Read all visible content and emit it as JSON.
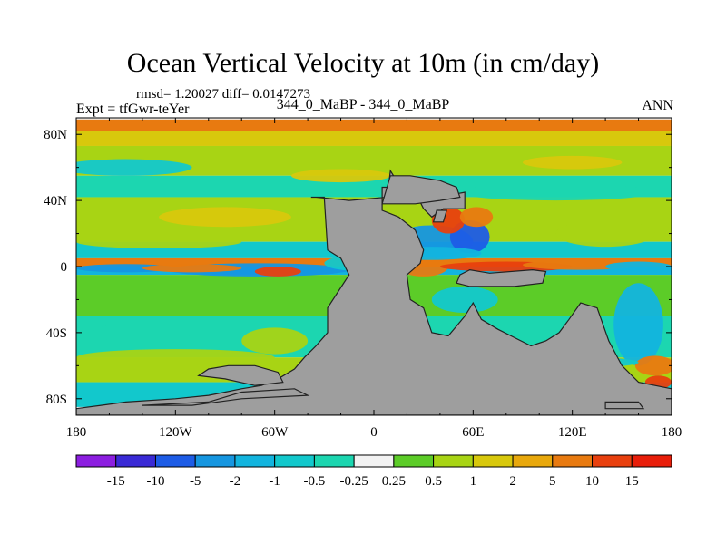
{
  "title": "Ocean Vertical Velocity at 10m (in cm/day)",
  "stats": "rmsd= 1.20027 diff= 0.0147273",
  "expt_label": "Expt = tfGwr-teYer",
  "comparison": "344_0_MaBP - 344_0_MaBP",
  "period": "ANN",
  "chart_data": {
    "type": "heatmap",
    "title": "Ocean Vertical Velocity at 10m (in cm/day)",
    "x_tick_labels": [
      "180",
      "120W",
      "60W",
      "0",
      "60E",
      "120E",
      "180"
    ],
    "y_tick_labels": [
      "80N",
      "40N",
      "0",
      "40S",
      "80S"
    ],
    "xlim": [
      -180,
      180
    ],
    "ylim": [
      -90,
      90
    ],
    "x_ticks": [
      -180,
      -120,
      -60,
      0,
      60,
      120,
      180
    ],
    "y_ticks": [
      80,
      40,
      0,
      -40,
      -80
    ],
    "land_color": "#9e9e9e",
    "colorbar": {
      "labels": [
        "-15",
        "-10",
        "-5",
        "-2",
        "-1",
        "-0.5",
        "-0.25",
        "0.25",
        "0.5",
        "1",
        "2",
        "5",
        "10",
        "15"
      ],
      "colors": [
        "#8c1ee0",
        "#3a2ad6",
        "#1d5ce6",
        "#1696e0",
        "#12b4de",
        "#12c8cc",
        "#1cd6b0",
        "#f2f2f2",
        "#5ccc28",
        "#a8d414",
        "#d8c80c",
        "#e8a80c",
        "#e87a10",
        "#e8400e",
        "#e81e0a"
      ]
    },
    "bands": [
      {
        "lat_min": 82,
        "lat_max": 89,
        "value": 5
      },
      {
        "lat_min": 73,
        "lat_max": 82,
        "value": 1
      },
      {
        "lat_min": 55,
        "lat_max": 73,
        "value": 0.5
      },
      {
        "lat_min": 42,
        "lat_max": 55,
        "value": -0.5
      },
      {
        "lat_min": 35,
        "lat_max": 42,
        "value": 0.5
      },
      {
        "lat_min": 15,
        "lat_max": 35,
        "value": 0.5
      },
      {
        "lat_min": 5,
        "lat_max": 15,
        "value": -1
      },
      {
        "lat_min": 0,
        "lat_max": 5,
        "value": 5
      },
      {
        "lat_min": -5,
        "lat_max": 0,
        "value": -2
      },
      {
        "lat_min": -30,
        "lat_max": -5,
        "value": 0.25
      },
      {
        "lat_min": -55,
        "lat_max": -30,
        "value": -0.5
      },
      {
        "lat_min": -70,
        "lat_max": -55,
        "value": 0.5
      },
      {
        "lat_min": -85,
        "lat_max": -70,
        "value": -1
      }
    ],
    "land_masses": [
      {
        "name": "Americas",
        "outline": [
          [
            -38,
            42
          ],
          [
            -30,
            42
          ],
          [
            -28,
            10
          ],
          [
            -20,
            5
          ],
          [
            -15,
            -5
          ],
          [
            -28,
            -25
          ],
          [
            -28,
            -40
          ],
          [
            -35,
            -48
          ],
          [
            -42,
            -55
          ],
          [
            -48,
            -62
          ],
          [
            -58,
            -68
          ],
          [
            -68,
            -72
          ],
          [
            -80,
            -74
          ],
          [
            -90,
            -76
          ],
          [
            -100,
            -78
          ],
          [
            -120,
            -80
          ],
          [
            -150,
            -82
          ],
          [
            -165,
            -84
          ],
          [
            -180,
            -86
          ],
          [
            -180,
            -90
          ],
          [
            180,
            -90
          ],
          [
            180,
            -74
          ],
          [
            170,
            -72
          ],
          [
            160,
            -70
          ],
          [
            150,
            -60
          ],
          [
            142,
            -45
          ],
          [
            135,
            -25
          ],
          [
            125,
            -22
          ],
          [
            118,
            -32
          ],
          [
            112,
            -40
          ],
          [
            104,
            -45
          ],
          [
            95,
            -48
          ],
          [
            85,
            -43
          ],
          [
            75,
            -38
          ],
          [
            65,
            -32
          ],
          [
            60,
            -22
          ],
          [
            55,
            -30
          ],
          [
            45,
            -42
          ],
          [
            35,
            -40
          ],
          [
            30,
            -25
          ],
          [
            22,
            -20
          ],
          [
            20,
            -5
          ],
          [
            28,
            2
          ],
          [
            30,
            10
          ],
          [
            25,
            22
          ],
          [
            15,
            30
          ],
          [
            5,
            34
          ],
          [
            5,
            48
          ],
          [
            20,
            48
          ],
          [
            40,
            46
          ],
          [
            50,
            44
          ],
          [
            55,
            45
          ],
          [
            55,
            35
          ],
          [
            42,
            35
          ],
          [
            35,
            30
          ],
          [
            30,
            35
          ],
          [
            25,
            45
          ],
          [
            15,
            50
          ],
          [
            10,
            58
          ],
          [
            8,
            42
          ],
          [
            -15,
            40
          ],
          [
            -35,
            42
          ]
        ]
      },
      {
        "name": "Central Asia",
        "outline": [
          [
            5,
            38
          ],
          [
            10,
            55
          ],
          [
            22,
            55
          ],
          [
            40,
            52
          ],
          [
            50,
            48
          ],
          [
            52,
            42
          ],
          [
            40,
            40
          ],
          [
            25,
            38
          ],
          [
            15,
            38
          ]
        ]
      },
      {
        "name": "Persian Gulf",
        "outline": [
          [
            36,
            27
          ],
          [
            42,
            27
          ],
          [
            44,
            34
          ],
          [
            38,
            34
          ]
        ]
      },
      {
        "name": "Australia",
        "outline": [
          [
            50,
            -10
          ],
          [
            58,
            -12
          ],
          [
            85,
            -12
          ],
          [
            102,
            -10
          ],
          [
            104,
            -3
          ],
          [
            96,
            -2
          ],
          [
            70,
            -4
          ],
          [
            58,
            -2
          ],
          [
            52,
            -5
          ]
        ]
      },
      {
        "name": "Southern continent",
        "outline": [
          [
            -100,
            -62
          ],
          [
            -88,
            -60
          ],
          [
            -72,
            -60
          ],
          [
            -58,
            -64
          ],
          [
            -55,
            -70
          ],
          [
            -72,
            -72
          ],
          [
            -90,
            -68
          ],
          [
            -106,
            -66
          ]
        ]
      },
      {
        "name": "Antarctic shelf",
        "outline": [
          [
            -140,
            -84
          ],
          [
            -100,
            -82
          ],
          [
            -80,
            -76
          ],
          [
            -48,
            -74
          ],
          [
            -40,
            -78
          ],
          [
            -80,
            -80
          ],
          [
            -110,
            -84
          ]
        ]
      },
      {
        "name": "Antarctic islet",
        "outline": [
          [
            140,
            -82
          ],
          [
            160,
            -82
          ],
          [
            163,
            -86
          ],
          [
            140,
            -86
          ]
        ]
      }
    ],
    "anomalies": [
      {
        "lon": -70,
        "lat": -2,
        "rx": 55,
        "ry": 4,
        "value": -5
      },
      {
        "lon": -58,
        "lat": -3,
        "rx": 14,
        "ry": 3,
        "value": 10
      },
      {
        "lon": -150,
        "lat": -1,
        "rx": 30,
        "ry": 2.5,
        "value": -5
      },
      {
        "lon": -110,
        "lat": -1,
        "rx": 30,
        "ry": 2.5,
        "value": 5
      },
      {
        "lon": 35,
        "lat": 15,
        "rx": 25,
        "ry": 10,
        "value": -5
      },
      {
        "lon": 58,
        "lat": 18,
        "rx": 12,
        "ry": 10,
        "value": -10
      },
      {
        "lon": 45,
        "lat": 28,
        "rx": 10,
        "ry": 8,
        "value": 10
      },
      {
        "lon": 62,
        "lat": 30,
        "rx": 10,
        "ry": 6,
        "value": 5
      },
      {
        "lon": 30,
        "lat": 0,
        "rx": 15,
        "ry": 6,
        "value": 5
      },
      {
        "lon": 80,
        "lat": 0,
        "rx": 40,
        "ry": 3,
        "value": 10
      },
      {
        "lon": 125,
        "lat": 1,
        "rx": 35,
        "ry": 3,
        "value": 5
      },
      {
        "lon": 160,
        "lat": 0,
        "rx": 20,
        "ry": 3,
        "value": -2
      },
      {
        "lon": 35,
        "lat": 8,
        "rx": 30,
        "ry": 4,
        "value": -2
      },
      {
        "lon": -5,
        "lat": 2,
        "rx": 25,
        "ry": 5,
        "value": -1
      },
      {
        "lon": 55,
        "lat": -20,
        "rx": 20,
        "ry": 8,
        "value": -1
      },
      {
        "lon": 160,
        "lat": -35,
        "rx": 15,
        "ry": 25,
        "value": -2
      },
      {
        "lon": 170,
        "lat": -60,
        "rx": 12,
        "ry": 6,
        "value": 5
      },
      {
        "lon": 172,
        "lat": -70,
        "rx": 8,
        "ry": 4,
        "value": 10
      },
      {
        "lon": -150,
        "lat": 60,
        "rx": 40,
        "ry": 5,
        "value": -1
      },
      {
        "lon": 120,
        "lat": 63,
        "rx": 30,
        "ry": 4,
        "value": 1
      },
      {
        "lon": -20,
        "lat": 55,
        "rx": 30,
        "ry": 4,
        "value": 1
      },
      {
        "lon": 110,
        "lat": 45,
        "rx": 60,
        "ry": 5,
        "value": -0.5
      },
      {
        "lon": -130,
        "lat": 15,
        "rx": 50,
        "ry": 4,
        "value": 0.5
      },
      {
        "lon": 140,
        "lat": 20,
        "rx": 30,
        "ry": 8,
        "value": 0.5
      },
      {
        "lon": -90,
        "lat": 30,
        "rx": 40,
        "ry": 6,
        "value": 1
      },
      {
        "lon": -140,
        "lat": -40,
        "rx": 30,
        "ry": 6,
        "value": -0.5
      },
      {
        "lon": -120,
        "lat": -55,
        "rx": 60,
        "ry": 5,
        "value": 0.5
      },
      {
        "lon": 100,
        "lat": -58,
        "rx": 60,
        "ry": 4,
        "value": -1
      },
      {
        "lon": -60,
        "lat": -45,
        "rx": 20,
        "ry": 8,
        "value": 0.5
      }
    ]
  }
}
